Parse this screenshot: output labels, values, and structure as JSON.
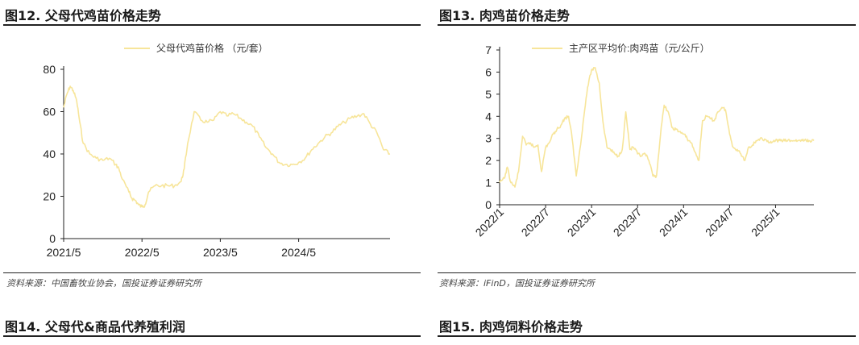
{
  "panels": [
    {
      "title": "图12. 父母代鸡苗价格走势",
      "source": "资料来源：中国畜牧业协会，国投证券证券研究所"
    },
    {
      "title": "图13. 肉鸡苗价格走势",
      "source": "资料来源：iFinD，国投证券证券研究所"
    },
    {
      "title": "图14. 父母代&商品代养殖利润",
      "source": ""
    },
    {
      "title": "图15. 肉鸡饲料价格走势",
      "source": ""
    }
  ],
  "colors": {
    "series": "#f7e59a",
    "axis": "#222222",
    "rule": "#222222"
  },
  "chart_data": [
    {
      "type": "line",
      "title": "",
      "xlabel": "",
      "ylabel": "",
      "ylim": [
        0,
        80
      ],
      "yticks": [
        0,
        20,
        40,
        60,
        80
      ],
      "xlim": [
        "2021-05",
        "2025-07"
      ],
      "xticks": [
        "2021/5",
        "2022/5",
        "2023/5",
        "2024/5"
      ],
      "legend": "top-center",
      "series": [
        {
          "name": "父母代鸡苗价格 （元/套）",
          "x": [
            "2021-05",
            "2021-05-15",
            "2021-06",
            "2021-06-15",
            "2021-07",
            "2021-07-15",
            "2021-08",
            "2021-09",
            "2021-10",
            "2021-11",
            "2021-12",
            "2022-01",
            "2022-01-15",
            "2022-02",
            "2022-03",
            "2022-03-15",
            "2022-04",
            "2022-04-15",
            "2022-05",
            "2022-05-15",
            "2022-06",
            "2022-07",
            "2022-08",
            "2022-09",
            "2022-10",
            "2022-11",
            "2022-11-15",
            "2022-12",
            "2023-01",
            "2023-02",
            "2023-03",
            "2023-04",
            "2023-05",
            "2023-06",
            "2023-07",
            "2023-08",
            "2023-09",
            "2023-10",
            "2023-11",
            "2023-12",
            "2024-01",
            "2024-02",
            "2024-03",
            "2024-04",
            "2024-05",
            "2024-06",
            "2024-07",
            "2024-08",
            "2024-09",
            "2024-10",
            "2024-11",
            "2024-12",
            "2025-01",
            "2025-02",
            "2025-03",
            "2025-04",
            "2025-05",
            "2025-06",
            "2025-07"
          ],
          "values": [
            62,
            68,
            72,
            70,
            65,
            55,
            45,
            40,
            38,
            37,
            38,
            35,
            33,
            28,
            22,
            19,
            18,
            16,
            15,
            16,
            22,
            25,
            25,
            25,
            25,
            27,
            33,
            45,
            60,
            56,
            55,
            56,
            60,
            58,
            59,
            57,
            55,
            53,
            48,
            43,
            40,
            36,
            35,
            35,
            36,
            38,
            42,
            45,
            48,
            50,
            53,
            55,
            57,
            58,
            59,
            54,
            50,
            42,
            40
          ]
        }
      ]
    },
    {
      "type": "line",
      "title": "",
      "xlabel": "",
      "ylabel": "",
      "ylim": [
        0,
        7
      ],
      "yticks": [
        0,
        1,
        2,
        3,
        4,
        5,
        6,
        7
      ],
      "xlim": [
        "2022-01",
        "2025-06"
      ],
      "xticks": [
        "2022/1",
        "2022/7",
        "2023/1",
        "2023/7",
        "2024/1",
        "2024/7",
        "2025/1"
      ],
      "legend": "top-center",
      "series": [
        {
          "name": "主产区平均价:肉鸡苗（元/公斤）",
          "x": [
            "2022-01",
            "2022-01-20",
            "2022-02",
            "2022-02-15",
            "2022-03",
            "2022-03-15",
            "2022-04",
            "2022-04-15",
            "2022-05",
            "2022-05-15",
            "2022-06",
            "2022-06-15",
            "2022-07",
            "2022-07-15",
            "2022-08",
            "2022-08-15",
            "2022-09",
            "2022-09-15",
            "2022-10",
            "2022-10-15",
            "2022-11",
            "2022-11-15",
            "2022-12",
            "2022-12-15",
            "2023-01",
            "2023-01-15",
            "2023-02",
            "2023-02-15",
            "2023-03",
            "2023-03-15",
            "2023-04",
            "2023-04-15",
            "2023-05",
            "2023-05-15",
            "2023-06",
            "2023-06-15",
            "2023-07",
            "2023-07-15",
            "2023-08",
            "2023-08-15",
            "2023-09",
            "2023-09-15",
            "2023-10",
            "2023-10-15",
            "2023-11",
            "2023-11-15",
            "2023-12",
            "2023-12-15",
            "2024-01",
            "2024-01-15",
            "2024-02",
            "2024-02-15",
            "2024-03",
            "2024-03-15",
            "2024-04",
            "2024-04-15",
            "2024-05",
            "2024-05-15",
            "2024-06",
            "2024-06-15",
            "2024-07",
            "2024-07-15",
            "2024-08",
            "2024-08-15",
            "2024-09",
            "2024-09-15",
            "2024-10",
            "2024-10-15",
            "2024-11",
            "2024-11-15",
            "2024-12",
            "2024-12-15",
            "2025-01",
            "2025-01-15",
            "2025-02",
            "2025-02-15",
            "2025-03",
            "2025-03-15",
            "2025-04",
            "2025-04-15",
            "2025-05",
            "2025-05-15",
            "2025-06"
          ],
          "values": [
            1.0,
            1.2,
            1.7,
            1.0,
            0.8,
            1.5,
            3.1,
            2.7,
            2.8,
            2.6,
            2.7,
            1.5,
            2.6,
            2.8,
            3.2,
            3.4,
            3.6,
            3.9,
            4.0,
            3.0,
            1.3,
            2.5,
            4.0,
            5.3,
            6.1,
            6.2,
            5.5,
            3.8,
            2.6,
            2.5,
            2.3,
            2.2,
            2.5,
            4.2,
            2.5,
            2.6,
            2.3,
            2.2,
            2.3,
            2.0,
            1.3,
            1.3,
            3.2,
            4.5,
            4.2,
            3.5,
            3.4,
            3.3,
            3.2,
            3.0,
            2.8,
            2.4,
            2.0,
            3.8,
            4.0,
            3.9,
            3.8,
            4.2,
            4.4,
            4.3,
            3.2,
            2.6,
            2.5,
            2.3,
            2.0,
            2.6,
            2.7,
            2.9,
            3.0,
            2.9,
            2.9,
            2.8,
            2.9,
            2.9,
            2.9,
            2.9,
            2.9,
            2.9,
            2.9,
            2.9,
            2.9,
            2.9,
            2.9
          ]
        }
      ]
    }
  ]
}
